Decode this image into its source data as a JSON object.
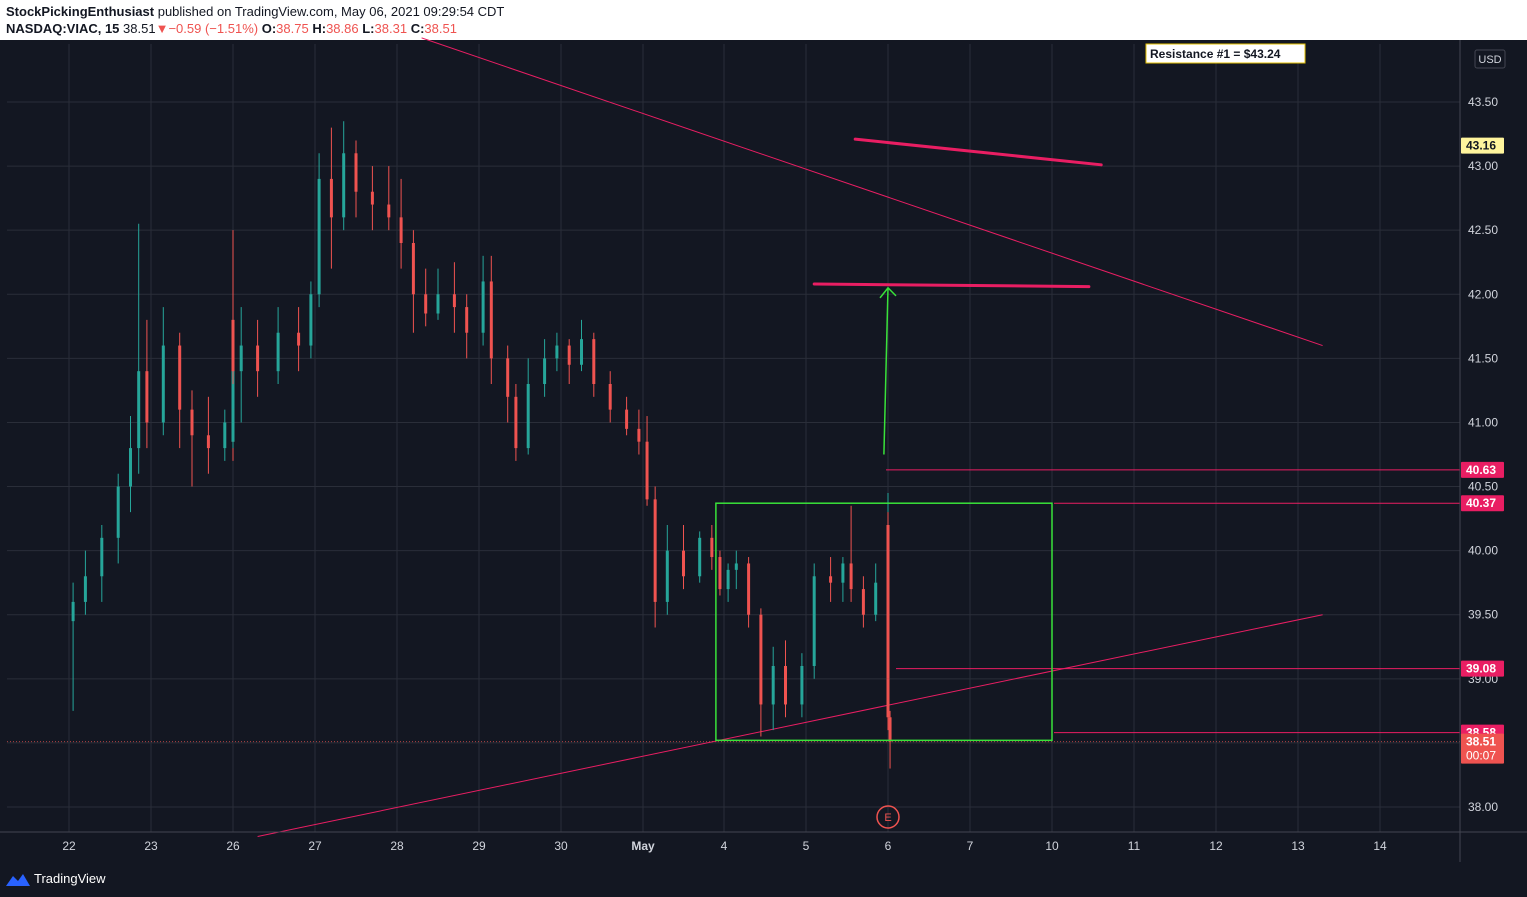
{
  "header": {
    "author": "StockPickingEnthusiast",
    "published": "published on TradingView.com, May 06, 2021 09:29:54 CDT",
    "symbol": "NASDAQ:VIAC, 15",
    "last": "38.51",
    "change": "−0.59 (−1.51%)",
    "o_label": "O:",
    "o": "38.75",
    "h_label": "H:",
    "h": "38.86",
    "l_label": "L:",
    "l": "38.31",
    "c_label": "C:",
    "c": "38.51"
  },
  "footer": {
    "brand": "TradingView"
  },
  "colors": {
    "up": "#26a69a",
    "down": "#ef5350",
    "trendline": "#e91e63",
    "box": "#39e23a",
    "arrow": "#39e23a",
    "background": "#131722",
    "grid": "#2a2e39"
  },
  "chart_data": {
    "type": "candlestick",
    "currency": "USD",
    "x_ticks": [
      "22",
      "23",
      "26",
      "27",
      "28",
      "29",
      "30",
      "May",
      "4",
      "5",
      "6",
      "7",
      "10",
      "11",
      "12",
      "13",
      "14"
    ],
    "y_ticks": [
      "38.00",
      "38.50",
      "39.00",
      "39.50",
      "40.00",
      "40.50",
      "41.00",
      "41.50",
      "42.00",
      "42.50",
      "43.00",
      "43.50"
    ],
    "ylim": [
      37.8,
      44.0
    ],
    "grid": true,
    "annotation": "Resistance #1 = $43.24",
    "earnings_marker": {
      "label": "E",
      "date": "6"
    },
    "price_labels": [
      {
        "label": "43.16",
        "value": 43.16,
        "style": "yellow"
      },
      {
        "label": "40.63",
        "value": 40.63,
        "style": "pink"
      },
      {
        "label": "40.37",
        "value": 40.37,
        "style": "pink"
      },
      {
        "label": "39.08",
        "value": 39.08,
        "style": "pink"
      },
      {
        "label": "38.58",
        "value": 38.58,
        "style": "pink"
      },
      {
        "label": "38.51",
        "value": 38.51,
        "style": "red",
        "sub": "00:07"
      }
    ],
    "trend_guides": [
      {
        "from": [
          "28.3",
          44.0
        ],
        "to": [
          "13.3",
          41.6
        ]
      },
      {
        "from": [
          "26.3",
          37.77
        ],
        "to": [
          "13.3",
          39.5
        ]
      }
    ],
    "resistance_lines": [
      {
        "from": [
          "5.6",
          43.21
        ],
        "to": [
          "10.6",
          43.01
        ]
      },
      {
        "from": [
          "5.1",
          42.08
        ],
        "to": [
          "10.45",
          42.06
        ]
      }
    ],
    "consolidation_box": {
      "x_from": "3.9",
      "x_to": "10.0",
      "y_low": 38.52,
      "y_high": 40.37
    },
    "arrow": {
      "from": [
        "5.95",
        40.75
      ],
      "to": [
        "6.15",
        42.05
      ]
    },
    "candles": [
      {
        "x": "21.05",
        "o": 39.45,
        "h": 39.75,
        "l": 38.75,
        "c": 39.6
      },
      {
        "x": "21.2",
        "o": 39.6,
        "h": 40.0,
        "l": 39.5,
        "c": 39.8
      },
      {
        "x": "21.4",
        "o": 39.8,
        "h": 40.2,
        "l": 39.6,
        "c": 40.1
      },
      {
        "x": "21.6",
        "o": 40.1,
        "h": 40.6,
        "l": 39.9,
        "c": 40.5
      },
      {
        "x": "21.75",
        "o": 40.5,
        "h": 41.05,
        "l": 40.3,
        "c": 40.8
      },
      {
        "x": "21.85",
        "o": 40.8,
        "h": 42.55,
        "l": 40.6,
        "c": 41.4
      },
      {
        "x": "21.95",
        "o": 41.4,
        "h": 41.8,
        "l": 40.8,
        "c": 41.0
      },
      {
        "x": "22.15",
        "o": 41.0,
        "h": 41.9,
        "l": 40.9,
        "c": 41.6
      },
      {
        "x": "22.35",
        "o": 41.6,
        "h": 41.7,
        "l": 40.8,
        "c": 41.1
      },
      {
        "x": "22.5",
        "o": 41.1,
        "h": 41.25,
        "l": 40.5,
        "c": 40.9
      },
      {
        "x": "22.7",
        "o": 40.9,
        "h": 41.2,
        "l": 40.6,
        "c": 40.8
      },
      {
        "x": "22.9",
        "o": 40.8,
        "h": 41.1,
        "l": 40.7,
        "c": 41.0
      },
      {
        "x": "23.05",
        "o": 41.0,
        "h": 41.9,
        "l": 40.9,
        "c": 41.6
      },
      {
        "x": "23.25",
        "o": 41.6,
        "h": 41.75,
        "l": 40.8,
        "c": 41.0
      },
      {
        "x": "23.45",
        "o": 41.0,
        "h": 41.1,
        "l": 40.7,
        "c": 40.85
      },
      {
        "x": "23.65",
        "o": 40.85,
        "h": 41.3,
        "l": 40.8,
        "c": 41.1
      },
      {
        "x": "23.85",
        "o": 41.1,
        "h": 41.7,
        "l": 41.0,
        "c": 41.5
      },
      {
        "x": "24.2",
        "o": 41.5,
        "h": 42.0,
        "l": 41.3,
        "c": 41.8
      },
      {
        "x": "24.6",
        "o": 41.8,
        "h": 42.5,
        "l": 41.3,
        "c": 41.4
      },
      {
        "x": "26.1",
        "o": 41.4,
        "h": 41.9,
        "l": 41.0,
        "c": 41.6
      },
      {
        "x": "26.3",
        "o": 41.6,
        "h": 41.8,
        "l": 41.2,
        "c": 41.4
      },
      {
        "x": "26.55",
        "o": 41.4,
        "h": 41.9,
        "l": 41.3,
        "c": 41.7
      },
      {
        "x": "26.8",
        "o": 41.7,
        "h": 41.9,
        "l": 41.4,
        "c": 41.6
      },
      {
        "x": "26.95",
        "o": 41.6,
        "h": 42.1,
        "l": 41.5,
        "c": 42.0
      },
      {
        "x": "27.05",
        "o": 42.0,
        "h": 43.1,
        "l": 41.9,
        "c": 42.9
      },
      {
        "x": "27.2",
        "o": 42.9,
        "h": 43.3,
        "l": 42.2,
        "c": 42.6
      },
      {
        "x": "27.35",
        "o": 42.6,
        "h": 43.35,
        "l": 42.5,
        "c": 43.1
      },
      {
        "x": "27.5",
        "o": 43.1,
        "h": 43.2,
        "l": 42.6,
        "c": 42.8
      },
      {
        "x": "27.7",
        "o": 42.8,
        "h": 43.0,
        "l": 42.5,
        "c": 42.7
      },
      {
        "x": "27.9",
        "o": 42.7,
        "h": 43.0,
        "l": 42.5,
        "c": 42.6
      },
      {
        "x": "28.05",
        "o": 42.6,
        "h": 42.9,
        "l": 42.2,
        "c": 42.4
      },
      {
        "x": "28.2",
        "o": 42.4,
        "h": 42.5,
        "l": 41.7,
        "c": 42.0
      },
      {
        "x": "28.35",
        "o": 42.0,
        "h": 42.2,
        "l": 41.75,
        "c": 41.85
      },
      {
        "x": "28.5",
        "o": 41.85,
        "h": 42.2,
        "l": 41.8,
        "c": 42.0
      },
      {
        "x": "28.7",
        "o": 42.0,
        "h": 42.25,
        "l": 41.7,
        "c": 41.9
      },
      {
        "x": "28.85",
        "o": 41.9,
        "h": 42.0,
        "l": 41.5,
        "c": 41.7
      },
      {
        "x": "29.05",
        "o": 41.7,
        "h": 42.3,
        "l": 41.6,
        "c": 42.1
      },
      {
        "x": "29.15",
        "o": 42.1,
        "h": 42.3,
        "l": 41.3,
        "c": 41.5
      },
      {
        "x": "29.35",
        "o": 41.5,
        "h": 41.6,
        "l": 41.0,
        "c": 41.2
      },
      {
        "x": "29.45",
        "o": 41.2,
        "h": 41.3,
        "l": 40.7,
        "c": 40.8
      },
      {
        "x": "29.6",
        "o": 40.8,
        "h": 41.5,
        "l": 40.75,
        "c": 41.3
      },
      {
        "x": "29.8",
        "o": 41.3,
        "h": 41.65,
        "l": 41.2,
        "c": 41.5
      },
      {
        "x": "29.95",
        "o": 41.5,
        "h": 41.7,
        "l": 41.4,
        "c": 41.6
      },
      {
        "x": "30.1",
        "o": 41.6,
        "h": 41.65,
        "l": 41.3,
        "c": 41.45
      },
      {
        "x": "30.25",
        "o": 41.45,
        "h": 41.8,
        "l": 41.4,
        "c": 41.65
      },
      {
        "x": "30.4",
        "o": 41.65,
        "h": 41.7,
        "l": 41.2,
        "c": 41.3
      },
      {
        "x": "30.6",
        "o": 41.3,
        "h": 41.4,
        "l": 41.0,
        "c": 41.1
      },
      {
        "x": "30.8",
        "o": 41.1,
        "h": 41.2,
        "l": 40.9,
        "c": 40.95
      },
      {
        "x": "30.95",
        "o": 40.95,
        "h": 41.1,
        "l": 40.75,
        "c": 40.85
      },
      {
        "x": "31.05",
        "o": 40.85,
        "h": 41.05,
        "l": 40.35,
        "c": 40.4
      },
      {
        "x": "31.15",
        "o": 40.4,
        "h": 40.5,
        "l": 39.4,
        "c": 39.6
      },
      {
        "x": "31.3",
        "o": 39.6,
        "h": 40.2,
        "l": 39.5,
        "c": 40.0
      },
      {
        "x": "31.5",
        "o": 40.0,
        "h": 40.2,
        "l": 39.7,
        "c": 39.8
      },
      {
        "x": "31.7",
        "o": 39.8,
        "h": 40.15,
        "l": 39.75,
        "c": 40.1
      },
      {
        "x": "31.85",
        "o": 40.1,
        "h": 40.2,
        "l": 39.85,
        "c": 39.95
      },
      {
        "x": "31.95",
        "o": 39.95,
        "h": 40.0,
        "l": 39.65,
        "c": 39.7
      },
      {
        "x": "32.05",
        "o": 39.7,
        "h": 39.9,
        "l": 39.6,
        "c": 39.85
      },
      {
        "x": "32.15",
        "o": 39.85,
        "h": 40.0,
        "l": 39.7,
        "c": 39.9
      },
      {
        "x": "32.3",
        "o": 39.9,
        "h": 39.95,
        "l": 39.4,
        "c": 39.5
      },
      {
        "x": "32.45",
        "o": 39.5,
        "h": 39.55,
        "l": 38.55,
        "c": 38.8
      },
      {
        "x": "32.6",
        "o": 38.8,
        "h": 39.25,
        "l": 38.6,
        "c": 39.1
      },
      {
        "x": "32.75",
        "o": 39.1,
        "h": 39.3,
        "l": 38.7,
        "c": 38.8
      },
      {
        "x": "32.95",
        "o": 38.8,
        "h": 39.2,
        "l": 38.7,
        "c": 39.1
      },
      {
        "x": "33.1",
        "o": 39.1,
        "h": 39.9,
        "l": 39.0,
        "c": 39.8
      },
      {
        "x": "33.3",
        "o": 39.8,
        "h": 39.95,
        "l": 39.6,
        "c": 39.75
      },
      {
        "x": "33.45",
        "o": 39.75,
        "h": 39.95,
        "l": 39.6,
        "c": 39.9
      },
      {
        "x": "33.55",
        "o": 39.9,
        "h": 40.35,
        "l": 39.6,
        "c": 39.7
      },
      {
        "x": "33.7",
        "o": 39.7,
        "h": 39.8,
        "l": 39.4,
        "c": 39.5
      },
      {
        "x": "33.85",
        "o": 39.5,
        "h": 39.9,
        "l": 39.45,
        "c": 39.75
      },
      {
        "x": "34.0",
        "o": 39.75,
        "h": 39.9,
        "l": 39.6,
        "c": 39.7
      },
      {
        "x": "34.15",
        "o": 39.7,
        "h": 39.75,
        "l": 39.35,
        "c": 39.4
      },
      {
        "x": "34.35",
        "o": 39.4,
        "h": 39.5,
        "l": 39.3,
        "c": 39.35
      },
      {
        "x": "34.5",
        "o": 39.35,
        "h": 39.5,
        "l": 39.15,
        "c": 39.2
      },
      {
        "x": "34.65",
        "o": 39.2,
        "h": 39.3,
        "l": 39.05,
        "c": 39.1
      },
      {
        "x": "34.75",
        "o": 39.1,
        "h": 40.45,
        "l": 39.0,
        "c": 40.2
      },
      {
        "x": "34.85",
        "o": 40.2,
        "h": 40.3,
        "l": 38.9,
        "c": 39.0
      },
      {
        "x": "34.95",
        "o": 39.0,
        "h": 39.05,
        "l": 38.6,
        "c": 38.7
      },
      {
        "x": "35.05",
        "o": 38.7,
        "h": 38.75,
        "l": 38.3,
        "c": 38.51
      }
    ]
  }
}
